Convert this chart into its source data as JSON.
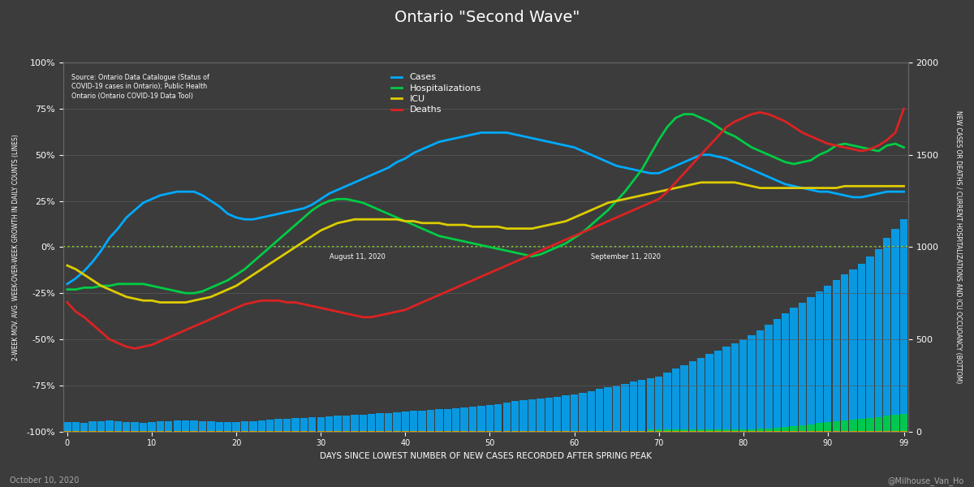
{
  "title": "Ontario \"Second Wave\"",
  "bg_color": "#3c3c3c",
  "plot_bg_color": "#484848",
  "xlabel": "DAYS SINCE LOWEST NUMBER OF NEW CASES RECORDED AFTER SPRING PEAK",
  "ylabel_left": "2-WEEK MOV. AVG. WEEK-OVER-WEEK GROWTH IN DAILY COUNTS (LINES)",
  "ylabel_right": "NEW CASES OR DEATHS / CURRENT HOSPITALIZATIONS AND ICU OCCUOANCY (BOTTOM)",
  "source_text": "Source: Ontario Data Catalogue (Status of\nCOVID-19 cases in Ontario); Public Health\nOntario (Ontario COVID-19 Data Tool)",
  "footnote_left": "October 10, 2020",
  "footnote_right": "@Milhouse_Van_Ho",
  "legend_labels": [
    "Cases",
    "Hospitalizations",
    "ICU",
    "Deaths"
  ],
  "line_colors": [
    "#00aaff",
    "#00cc44",
    "#ddcc00",
    "#dd2222"
  ],
  "bar_color_cases": "#00aaff",
  "bar_color_hosp": "#00cc44",
  "bar_color_icu": "#ddaa00",
  "annotation_aug": {
    "x": 31,
    "label": "August 11, 2020"
  },
  "annotation_sep": {
    "x": 62,
    "label": "September 11, 2020"
  },
  "n_days": 100
}
